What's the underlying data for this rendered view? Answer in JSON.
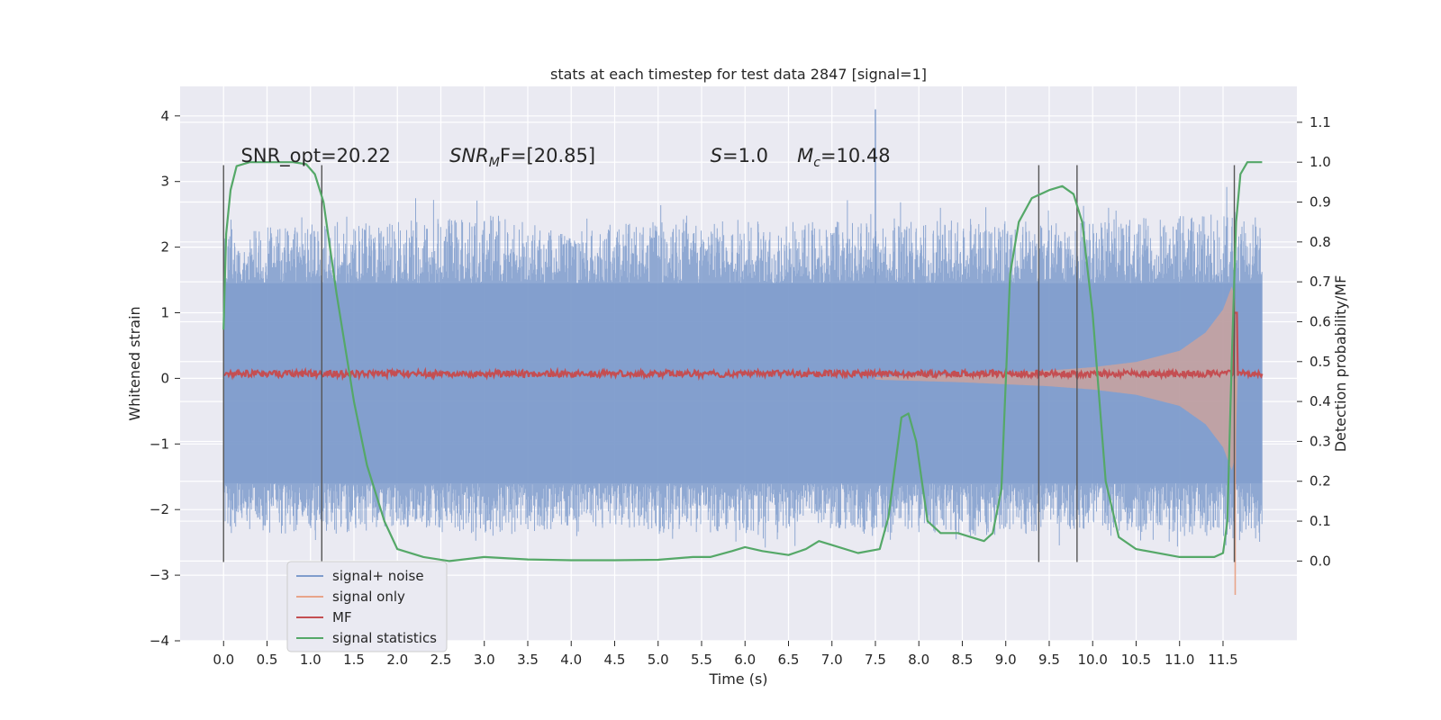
{
  "chart_data": {
    "type": "line",
    "title": "stats at each timestep for test data 2847 [signal=1]",
    "xlabel": "Time (s)",
    "ylabel": "Whitened strain",
    "ylabel_right": "Detection probability/MF",
    "xlim": [
      -0.5,
      12.35
    ],
    "ylim": [
      -4.0,
      4.45
    ],
    "ylim_right": [
      -0.2,
      1.19
    ],
    "x_ticks": [
      0.0,
      0.5,
      1.0,
      1.5,
      2.0,
      2.5,
      3.0,
      3.5,
      4.0,
      4.5,
      5.0,
      5.5,
      6.0,
      6.5,
      7.0,
      7.5,
      8.0,
      8.5,
      9.0,
      9.5,
      10.0,
      10.5,
      11.0,
      11.5
    ],
    "x_tick_labels": [
      "0.0",
      "0.5",
      "1.0",
      "1.5",
      "2.0",
      "2.5",
      "3.0",
      "3.5",
      "4.0",
      "4.5",
      "5.0",
      "5.5",
      "6.0",
      "6.5",
      "7.0",
      "7.5",
      "8.0",
      "8.5",
      "9.0",
      "9.5",
      "10.0",
      "10.5",
      "11.0",
      "11.5"
    ],
    "y_ticks": [
      -4,
      -3,
      -2,
      -1,
      0,
      1,
      2,
      3,
      4
    ],
    "y_tick_labels": [
      "−4",
      "−3",
      "−2",
      "−1",
      "0",
      "1",
      "2",
      "3",
      "4"
    ],
    "y_right_ticks": [
      0.0,
      0.1,
      0.2,
      0.3,
      0.4,
      0.5,
      0.6,
      0.7,
      0.8,
      0.9,
      1.0,
      1.1
    ],
    "y_right_tick_labels": [
      "0.0",
      "0.1",
      "0.2",
      "0.3",
      "0.4",
      "0.5",
      "0.6",
      "0.7",
      "0.8",
      "0.9",
      "1.0",
      "1.1"
    ],
    "grid": true,
    "annotations": [
      {
        "text": "SNR_opt=20.22",
        "x": 0.2,
        "y": 3.3,
        "italic": false,
        "key": "snr-opt"
      },
      {
        "base": "SNR",
        "sub": "M",
        "rest": "F=[20.85]",
        "x": 2.6,
        "y": 3.3,
        "key": "snr-mf"
      },
      {
        "base": "S",
        "sub": "",
        "rest": "=1.0",
        "x": 5.6,
        "y": 3.3,
        "key": "s-value"
      },
      {
        "base": "M",
        "sub": "c",
        "rest": "=10.48",
        "x": 6.6,
        "y": 3.3,
        "key": "chirp-mass"
      }
    ],
    "vertical_lines": {
      "x": [
        0.0,
        1.13,
        9.38,
        9.82,
        11.63
      ],
      "y_range": [
        -2.8,
        3.25
      ],
      "color": "#555555"
    },
    "series": [
      {
        "name": "signal+ noise",
        "color": "#7f9ccc",
        "x_range": [
          0.0,
          11.95
        ],
        "envelope": [
          {
            "x": 0.0,
            "high": 2.2,
            "low": -2.3
          },
          {
            "x": 1.0,
            "high": 2.4,
            "low": -2.4
          },
          {
            "x": 2.0,
            "high": 2.4,
            "low": -2.3
          },
          {
            "x": 3.0,
            "high": 2.5,
            "low": -2.4
          },
          {
            "x": 4.0,
            "high": 2.3,
            "low": -2.3
          },
          {
            "x": 5.0,
            "high": 2.4,
            "low": -2.3
          },
          {
            "x": 6.0,
            "high": 2.4,
            "low": -2.4
          },
          {
            "x": 7.0,
            "high": 2.4,
            "low": -2.3
          },
          {
            "x": 8.0,
            "high": 2.4,
            "low": -2.4
          },
          {
            "x": 9.0,
            "high": 2.4,
            "low": -2.4
          },
          {
            "x": 10.0,
            "high": 2.4,
            "low": -2.3
          },
          {
            "x": 11.0,
            "high": 2.5,
            "low": -2.4
          },
          {
            "x": 11.95,
            "high": 2.6,
            "low": -2.5
          }
        ],
        "core_band": [
          -1.6,
          1.45
        ],
        "peak_min": 4.1,
        "peak_max": 4.1
      },
      {
        "name": "signal only",
        "color": "#e8a58a",
        "amplitude": [
          {
            "x": 7.5,
            "a": 0.02
          },
          {
            "x": 8.5,
            "a": 0.06
          },
          {
            "x": 9.5,
            "a": 0.12
          },
          {
            "x": 10.0,
            "a": 0.17
          },
          {
            "x": 10.5,
            "a": 0.25
          },
          {
            "x": 11.0,
            "a": 0.42
          },
          {
            "x": 11.3,
            "a": 0.7
          },
          {
            "x": 11.5,
            "a": 1.05
          },
          {
            "x": 11.6,
            "a": 1.4
          },
          {
            "x": 11.64,
            "a": 1.2
          },
          {
            "x": 11.67,
            "a": 0.0
          }
        ]
      },
      {
        "name": "MF",
        "color": "#c44e52",
        "baseline": 0.07,
        "noise": 0.05,
        "peak": {
          "x": 11.64,
          "y": 1.0
        }
      },
      {
        "name": "signal statistics",
        "color": "#55a868",
        "axis": "right",
        "x": [
          0.0,
          0.03,
          0.08,
          0.15,
          0.3,
          0.5,
          0.8,
          0.95,
          1.05,
          1.15,
          1.3,
          1.5,
          1.65,
          1.85,
          2.0,
          2.3,
          2.6,
          3.0,
          3.5,
          4.0,
          4.5,
          5.0,
          5.4,
          5.6,
          5.85,
          6.0,
          6.2,
          6.5,
          6.7,
          6.85,
          7.0,
          7.3,
          7.55,
          7.65,
          7.8,
          7.88,
          7.97,
          8.1,
          8.25,
          8.45,
          8.6,
          8.75,
          8.85,
          8.95,
          9.05,
          9.15,
          9.3,
          9.5,
          9.65,
          9.78,
          9.88,
          10.0,
          10.15,
          10.3,
          10.5,
          11.0,
          11.4,
          11.5,
          11.55,
          11.6,
          11.65,
          11.7,
          11.78,
          11.95
        ],
        "y": [
          0.58,
          0.82,
          0.93,
          0.99,
          1.0,
          1.0,
          1.0,
          0.995,
          0.97,
          0.9,
          0.67,
          0.4,
          0.24,
          0.1,
          0.03,
          0.01,
          0.0,
          0.01,
          0.004,
          0.002,
          0.002,
          0.003,
          0.01,
          0.01,
          0.025,
          0.035,
          0.025,
          0.015,
          0.03,
          0.05,
          0.04,
          0.02,
          0.03,
          0.11,
          0.36,
          0.37,
          0.3,
          0.1,
          0.07,
          0.07,
          0.06,
          0.05,
          0.07,
          0.18,
          0.72,
          0.85,
          0.91,
          0.93,
          0.94,
          0.92,
          0.85,
          0.62,
          0.2,
          0.06,
          0.03,
          0.01,
          0.01,
          0.02,
          0.1,
          0.5,
          0.85,
          0.97,
          1.0,
          1.0
        ]
      }
    ],
    "legend": {
      "position": "lower-left",
      "entries": [
        "signal+ noise",
        "signal only",
        "MF",
        "signal statistics"
      ]
    }
  }
}
